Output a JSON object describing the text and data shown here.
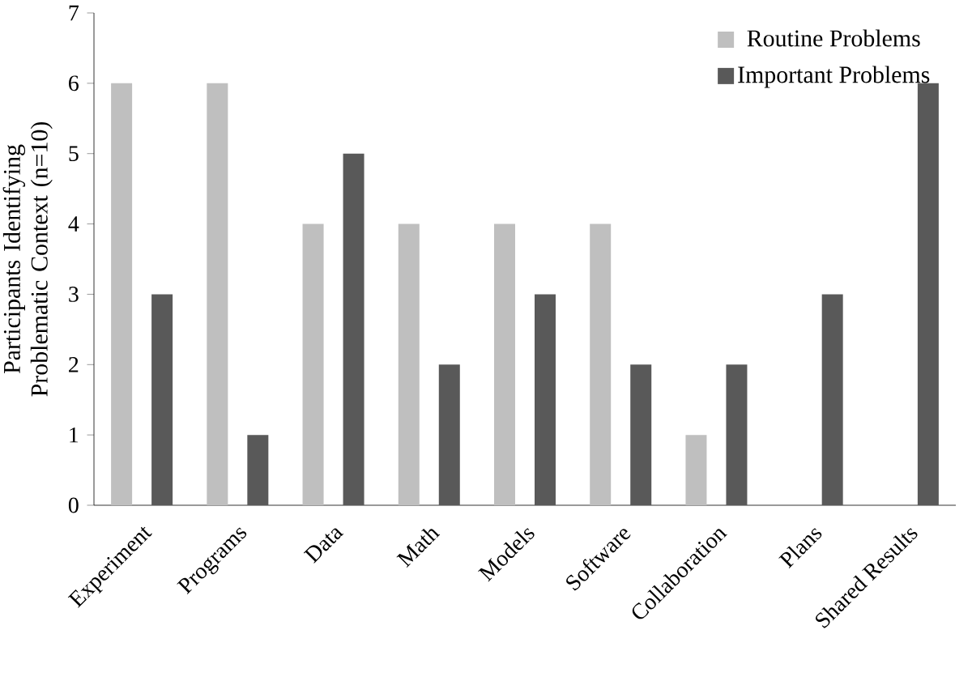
{
  "chart_data": {
    "type": "bar",
    "ylabel": "Participants Identifying Problematic Context (n=10)",
    "categories": [
      "Experiment",
      "Programs",
      "Data",
      "Math",
      "Models",
      "Software",
      "Collaboration",
      "Plans",
      "Shared Results"
    ],
    "series": [
      {
        "name": "Routine Problems",
        "color": "#bfbfbf",
        "values": [
          6,
          6,
          4,
          4,
          4,
          4,
          1,
          0,
          0
        ]
      },
      {
        "name": "Important Problems",
        "color": "#595959",
        "values": [
          3,
          1,
          5,
          2,
          3,
          2,
          2,
          3,
          6
        ]
      }
    ],
    "ylim": [
      0,
      7
    ],
    "yticks": [
      0,
      1,
      2,
      3,
      4,
      5,
      6,
      7
    ],
    "grid": false,
    "legend": "top right"
  }
}
